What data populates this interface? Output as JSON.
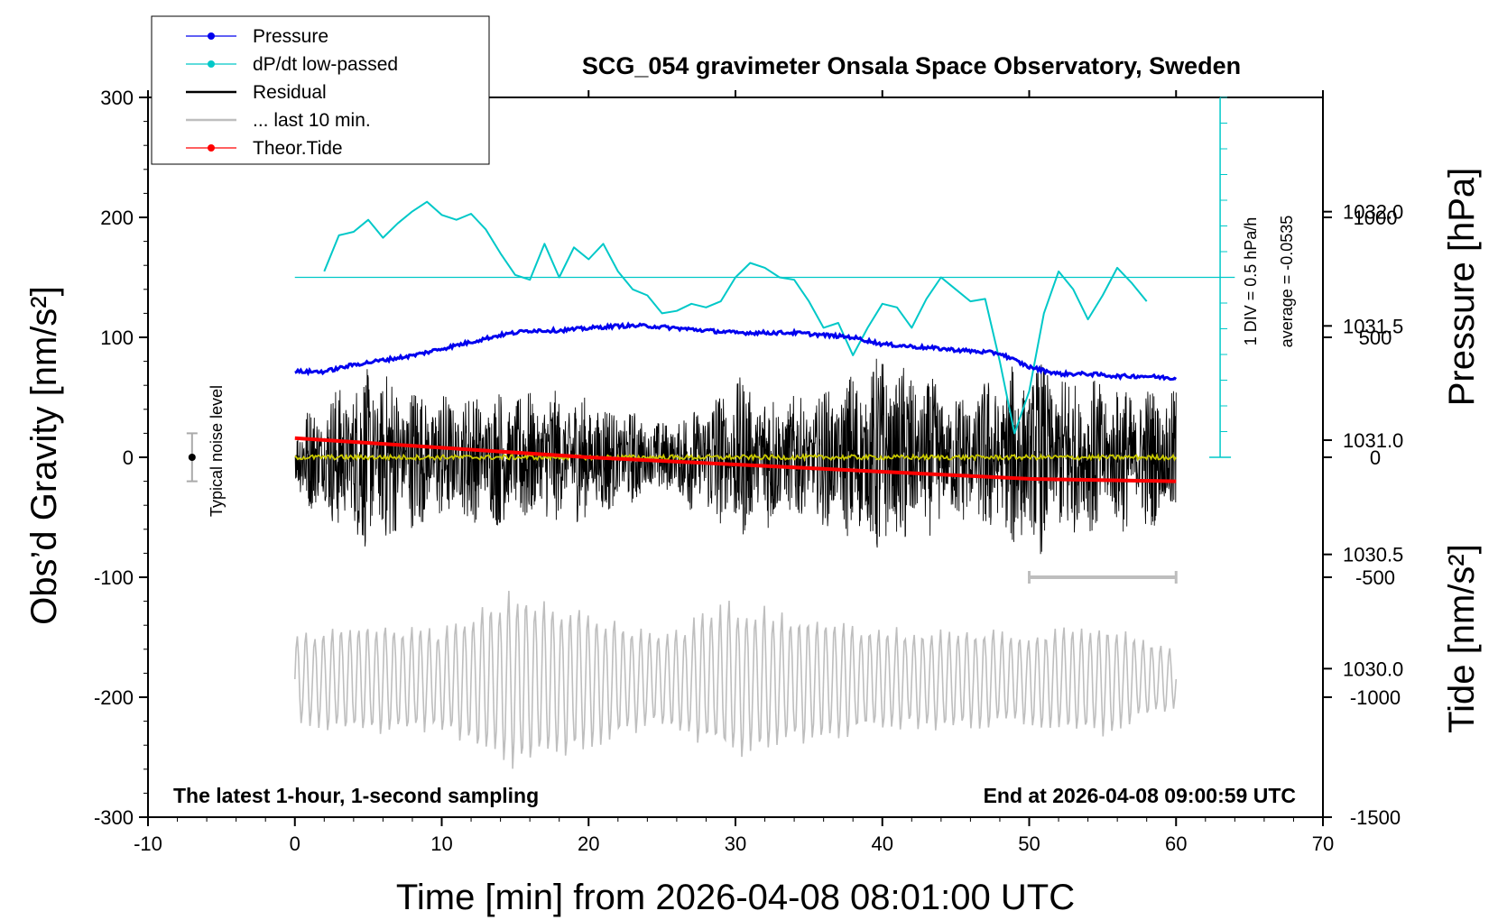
{
  "chart_data": {
    "type": "line",
    "title": "SCG_054 gravimeter Onsala Space Observatory, Sweden",
    "xlabel": "Time [min] from 2026-04-08 08:01:00 UTC",
    "ylabel_left": "Obs’d Gravity [nm/s²]",
    "ylabel_right_top": "Pressure [hPa]",
    "ylabel_right_bottom": "Tide [nm/s²]",
    "xlim": [
      -10,
      70
    ],
    "ylim": [
      -300,
      300
    ],
    "x_ticks": [
      "-10",
      "0",
      "10",
      "20",
      "30",
      "40",
      "50",
      "60",
      "70"
    ],
    "y_ticks_left": [
      "300",
      "200",
      "100",
      "0",
      "-100",
      "-200",
      "-300"
    ],
    "pressure_ticks": [
      "1032.0",
      "1031.5",
      "1031.0",
      "1030.5",
      "1030.0"
    ],
    "tide_ticks": [
      "1000",
      "500",
      "0",
      "-500",
      "-1000",
      "-1500"
    ],
    "pressure_axis": {
      "range": [
        1029.35,
        1032.5
      ]
    },
    "tide_axis": {
      "range": [
        -1500,
        1500
      ]
    },
    "legend": [
      {
        "label": "Pressure",
        "color": "#0000ee",
        "marker": true
      },
      {
        "label": "dP/dt low-passed",
        "color": "#00c8c8",
        "marker": true
      },
      {
        "label": "Residual",
        "color": "#000000",
        "marker": false
      },
      {
        "label": "... last 10 min.",
        "color": "#bebebe",
        "marker": false
      },
      {
        "label": "Theor.Tide",
        "color": "#ff0000",
        "marker": true
      }
    ],
    "legend_position": "top-left",
    "annotations": {
      "left_note": "The latest 1-hour, 1-second sampling",
      "right_note": "End at 2026-04-08 09:00:59 UTC",
      "noise_label": "Typical noise level",
      "div_label": "1 DIV = 0.5 hPa/h",
      "avg_label": "average = -0.0535"
    },
    "series": [
      {
        "name": "Pressure",
        "axis": "pressure",
        "color": "#0000ee",
        "x": [
          0,
          2,
          4,
          6,
          8,
          10,
          12,
          14,
          16,
          18,
          20,
          22,
          24,
          26,
          28,
          30,
          32,
          34,
          36,
          38,
          40,
          42,
          44,
          46,
          48,
          50,
          52,
          54,
          56,
          58,
          60
        ],
        "values": [
          1031.3,
          1031.3,
          1031.33,
          1031.35,
          1031.37,
          1031.4,
          1031.43,
          1031.46,
          1031.48,
          1031.48,
          1031.49,
          1031.5,
          1031.5,
          1031.49,
          1031.48,
          1031.47,
          1031.47,
          1031.47,
          1031.46,
          1031.45,
          1031.42,
          1031.41,
          1031.4,
          1031.39,
          1031.38,
          1031.32,
          1031.29,
          1031.29,
          1031.28,
          1031.28,
          1031.27
        ]
      },
      {
        "name": "dP/dt low-passed",
        "axis": "gravity",
        "color": "#00c8c8",
        "baseline": 150,
        "x": [
          2,
          3,
          4,
          5,
          6,
          7,
          8,
          9,
          10,
          11,
          12,
          13,
          14,
          15,
          16,
          17,
          18,
          19,
          20,
          21,
          22,
          23,
          24,
          25,
          26,
          27,
          28,
          29,
          30,
          31,
          32,
          33,
          34,
          35,
          36,
          37,
          38,
          39,
          40,
          41,
          42,
          43,
          44,
          45,
          46,
          47,
          48,
          49,
          50,
          51,
          52,
          53,
          54,
          55,
          56,
          57,
          58
        ],
        "values": [
          155,
          185,
          188,
          198,
          183,
          195,
          205,
          213,
          202,
          198,
          203,
          190,
          170,
          152,
          148,
          178,
          150,
          175,
          165,
          178,
          155,
          140,
          135,
          120,
          122,
          128,
          125,
          130,
          150,
          162,
          158,
          150,
          148,
          130,
          108,
          112,
          85,
          108,
          128,
          125,
          108,
          132,
          150,
          140,
          130,
          132,
          80,
          20,
          55,
          120,
          155,
          140,
          115,
          135,
          158,
          145,
          130
        ]
      },
      {
        "name": "Theor.Tide",
        "axis": "tide",
        "color": "#ff0000",
        "x": [
          0,
          10,
          20,
          30,
          40,
          50,
          60
        ],
        "values": [
          80,
          40,
          0,
          -30,
          -60,
          -90,
          -100
        ]
      }
    ],
    "residual": {
      "color": "#000000",
      "x_range": [
        0,
        60
      ],
      "envelope": {
        "x": [
          0,
          5,
          10,
          15,
          20,
          25,
          30,
          35,
          40,
          45,
          50,
          55,
          60
        ],
        "amp": [
          35,
          80,
          55,
          60,
          55,
          30,
          70,
          50,
          90,
          55,
          85,
          65,
          60
        ]
      }
    },
    "last10": {
      "color": "#bebebe",
      "x_range": [
        0,
        60
      ],
      "center": -185,
      "envelope": {
        "x": [
          0,
          5,
          10,
          15,
          20,
          25,
          30,
          35,
          40,
          45,
          50,
          55,
          60
        ],
        "amp": [
          40,
          50,
          45,
          80,
          60,
          40,
          70,
          55,
          45,
          45,
          40,
          50,
          25
        ]
      },
      "bar": [
        50,
        60
      ]
    },
    "noise_bar": {
      "x": -7,
      "center": 0,
      "range": [
        -20,
        20
      ]
    }
  }
}
